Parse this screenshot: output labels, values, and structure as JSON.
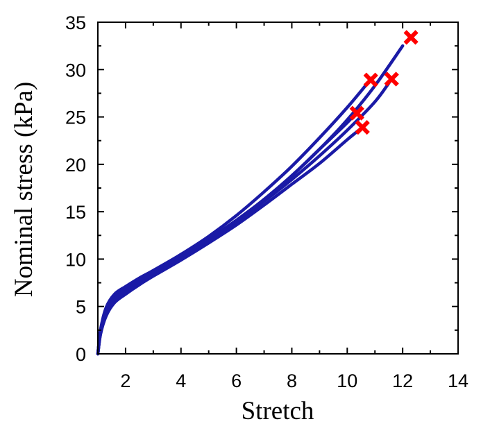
{
  "chart_data": {
    "type": "line",
    "title": "",
    "xlabel": "Stretch",
    "ylabel": "Nominal stress (kPa)",
    "xlim": [
      1,
      14
    ],
    "ylim": [
      0,
      35
    ],
    "x_ticks": [
      2,
      4,
      6,
      8,
      10,
      12,
      14
    ],
    "y_ticks": [
      0,
      5,
      10,
      15,
      20,
      25,
      30,
      35
    ],
    "grid": false,
    "legend": "none",
    "colors": {
      "line": "#1a1aa6",
      "failure_marker": "#ff0000"
    },
    "series": [
      {
        "x": [
          1.0,
          1.1,
          1.3,
          1.6,
          2.0,
          2.5,
          3.0,
          4.0,
          5.0,
          6.0,
          7.0,
          8.0,
          9.0,
          10.0,
          10.3
        ],
        "y": [
          0,
          2.4,
          4.5,
          6.0,
          6.9,
          7.8,
          8.6,
          10.2,
          12.0,
          14.0,
          16.3,
          18.8,
          21.6,
          24.4,
          25.4
        ]
      },
      {
        "x": [
          1.0,
          1.1,
          1.3,
          1.6,
          2.0,
          2.5,
          3.0,
          4.0,
          5.0,
          6.0,
          7.0,
          8.0,
          9.0,
          10.0,
          10.5
        ],
        "y": [
          0,
          2.1,
          4.0,
          5.4,
          6.3,
          7.3,
          8.2,
          9.9,
          11.7,
          13.6,
          15.7,
          17.9,
          20.1,
          22.6,
          23.8
        ]
      },
      {
        "x": [
          1.0,
          1.1,
          1.3,
          1.6,
          2.0,
          2.5,
          3.0,
          4.0,
          5.0,
          6.0,
          7.0,
          8.0,
          9.0,
          10.0,
          10.8
        ],
        "y": [
          0,
          2.6,
          4.9,
          6.3,
          7.1,
          8.0,
          8.8,
          10.5,
          12.4,
          14.6,
          17.1,
          19.8,
          22.8,
          26.0,
          28.8
        ]
      },
      {
        "x": [
          1.0,
          1.1,
          1.3,
          1.6,
          2.0,
          2.5,
          3.0,
          4.0,
          5.0,
          6.0,
          7.0,
          8.0,
          9.0,
          10.0,
          11.0,
          11.6
        ],
        "y": [
          0,
          2.2,
          4.2,
          5.6,
          6.5,
          7.5,
          8.4,
          10.0,
          11.9,
          13.9,
          16.1,
          18.4,
          20.9,
          23.6,
          26.6,
          29.0
        ]
      },
      {
        "x": [
          1.0,
          1.1,
          1.3,
          1.6,
          2.0,
          2.5,
          3.0,
          4.0,
          5.0,
          6.0,
          7.0,
          8.0,
          9.0,
          10.0,
          11.0,
          12.0
        ],
        "y": [
          0,
          2.3,
          4.4,
          5.8,
          6.7,
          7.7,
          8.6,
          10.3,
          12.1,
          14.1,
          16.3,
          18.8,
          21.6,
          24.7,
          28.3,
          32.5
        ]
      }
    ],
    "failure_points": {
      "x": [
        10.35,
        10.55,
        10.85,
        11.6,
        12.3
      ],
      "y": [
        25.4,
        23.9,
        28.9,
        29.0,
        33.4
      ]
    }
  }
}
